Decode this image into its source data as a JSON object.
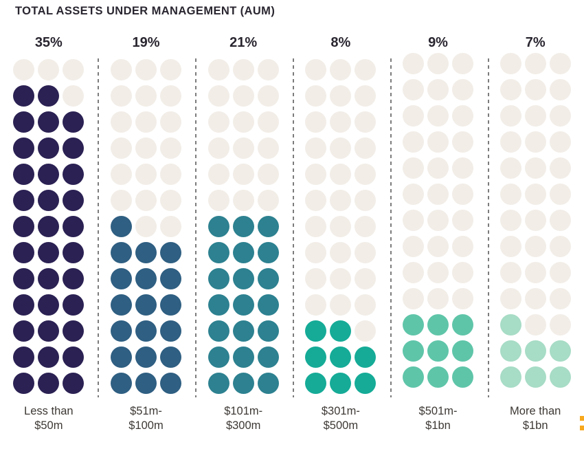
{
  "title": "TOTAL ASSETS UNDER MANAGEMENT (AUM)",
  "accent_mark": {
    "color": "#F7A81D"
  },
  "colors": {
    "title_text": "#2A2630",
    "label_text": "#3D3935",
    "separator": "#7C7C7C"
  },
  "chart_data": {
    "type": "pictogram-waffle",
    "title": "TOTAL ASSETS UNDER MANAGEMENT (AUM)",
    "unit_per_dot_percent": 1,
    "grid": {
      "rows": 13,
      "cols": 3,
      "fill_direction": "bottom-up, left-to-right"
    },
    "empty_dot_color": "#F2EDE7",
    "columns": [
      {
        "percent": "35%",
        "value": 35,
        "label_line1": "Less than",
        "label_line2": "$50m",
        "color": "#2B2153"
      },
      {
        "percent": "19%",
        "value": 19,
        "label_line1": "$51m-",
        "label_line2": "$100m",
        "color": "#2F5F82"
      },
      {
        "percent": "21%",
        "value": 21,
        "label_line1": "$101m-",
        "label_line2": "$300m",
        "color": "#2D8190"
      },
      {
        "percent": "8%",
        "value": 8,
        "label_line1": "$301m-",
        "label_line2": "$500m",
        "color": "#15AB97"
      },
      {
        "percent": "9%",
        "value": 9,
        "label_line1": "$501m-",
        "label_line2": "$1bn",
        "color": "#5FC5A9"
      },
      {
        "percent": "7%",
        "value": 7,
        "label_line1": "More than",
        "label_line2": "$1bn",
        "color": "#A7DCC6"
      }
    ]
  }
}
